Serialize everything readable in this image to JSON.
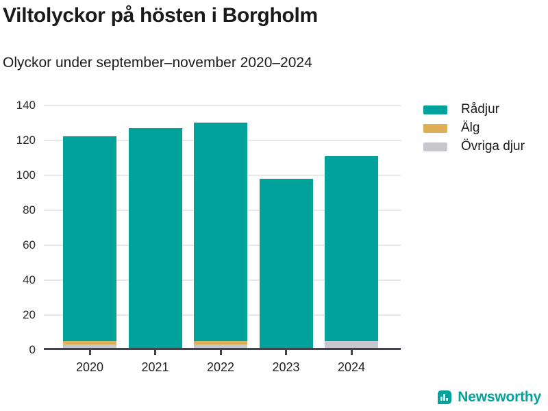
{
  "header": {
    "title": "Viltolyckor på hösten i Borgholm",
    "subtitle": "Olyckor under september–november 2020–2024"
  },
  "chart_data": {
    "type": "bar",
    "stacked": true,
    "title": "Viltolyckor på hösten i Borgholm",
    "subtitle": "Olyckor under september–november 2020–2024",
    "categories": [
      "2020",
      "2021",
      "2022",
      "2023",
      "2024"
    ],
    "series": [
      {
        "name": "Rådjur",
        "color": "#00a29b",
        "values": [
          117,
          127,
          125,
          98,
          106
        ]
      },
      {
        "name": "Älg",
        "color": "#ddaf57",
        "values": [
          2,
          0,
          2,
          0,
          0
        ]
      },
      {
        "name": "Övriga djur",
        "color": "#c7c7cd",
        "values": [
          3,
          0,
          3,
          0,
          5
        ]
      }
    ],
    "totals": [
      122,
      127,
      130,
      98,
      111
    ],
    "stack_bottom_to_top": [
      "Övriga djur",
      "Älg",
      "Rådjur"
    ],
    "xlabel": "",
    "ylabel": "",
    "ylim": [
      0,
      140
    ],
    "yticks": [
      0,
      20,
      40,
      60,
      80,
      100,
      120,
      140
    ],
    "grid": true,
    "legend_position": "right"
  },
  "footer": {
    "brand": "Newsworthy",
    "brand_color": "#00a29b",
    "logo_icon": "bar-chart-bubble-icon"
  }
}
